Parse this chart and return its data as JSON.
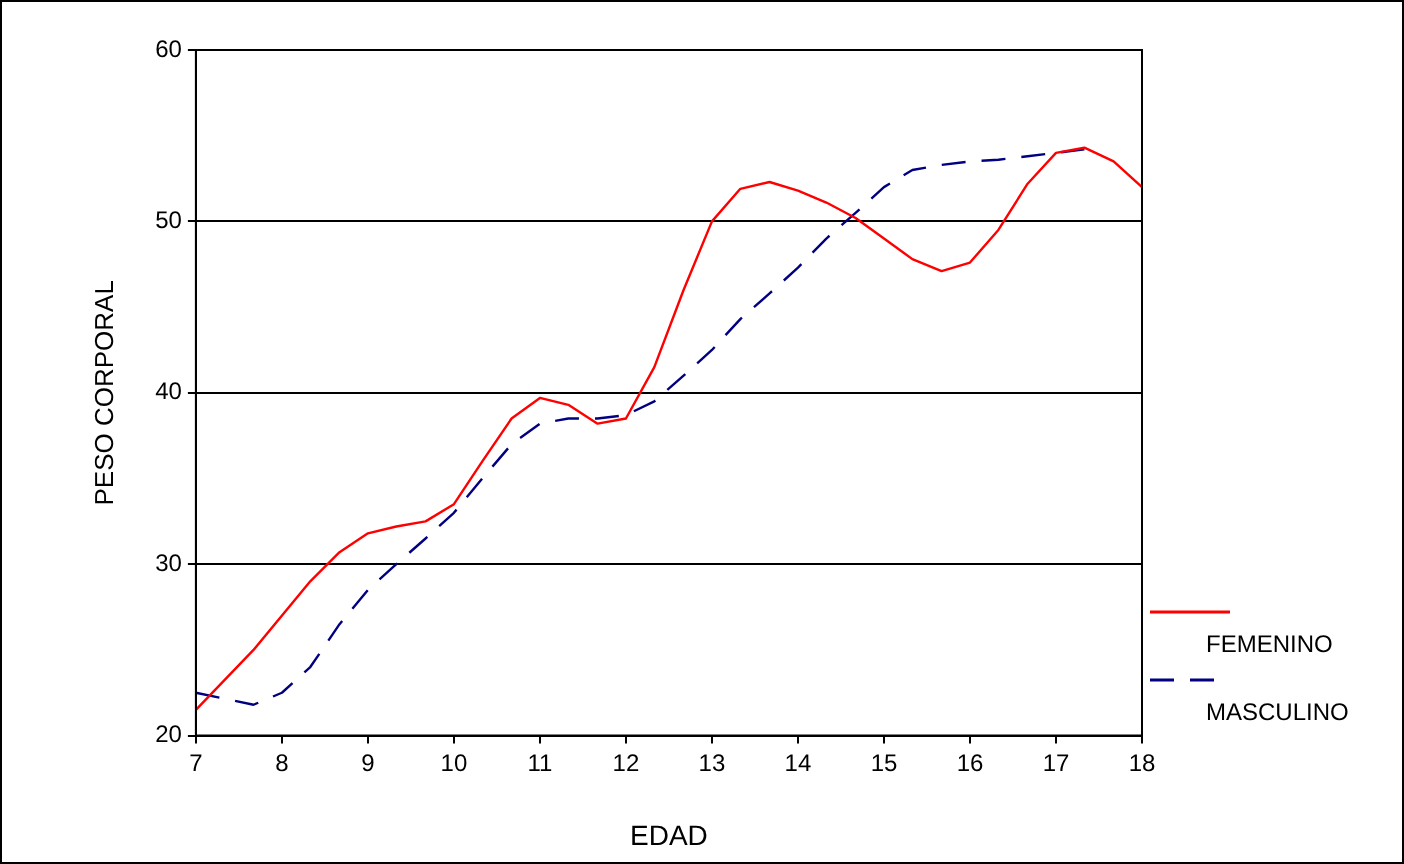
{
  "chart_data": {
    "type": "line",
    "xlabel": "EDAD",
    "ylabel": "PESO CORPORAL",
    "xlim": [
      7,
      18
    ],
    "xticks": [
      7,
      8,
      9,
      10,
      11,
      12,
      13,
      14,
      15,
      16,
      17,
      18
    ],
    "ylim": [
      20,
      60
    ],
    "yticks": [
      20,
      30,
      40,
      50,
      60
    ],
    "grid": "y",
    "legend": "right",
    "marker": "none",
    "series": [
      {
        "name": "FEMENINO",
        "color": "#ff0000",
        "line_style": "solid",
        "x": [
          7,
          7.67,
          8.33,
          8.67,
          9,
          9.33,
          9.67,
          10,
          10.33,
          10.67,
          11,
          11.33,
          11.67,
          12,
          12.33,
          12.67,
          13,
          13.33,
          13.67,
          14,
          14.33,
          14.67,
          15,
          15.33,
          15.67,
          16,
          16.33,
          16.67,
          17,
          17.33,
          17.67,
          18
        ],
        "values": [
          21.5,
          25,
          29,
          30.7,
          31.8,
          32.2,
          32.5,
          33.5,
          36,
          38.5,
          39.7,
          39.3,
          38.2,
          38.5,
          41.5,
          46,
          50,
          51.9,
          52.3,
          51.8,
          51.1,
          50.2,
          49,
          47.8,
          47.1,
          47.6,
          49.5,
          52.2,
          54,
          54.3,
          53.5,
          52
        ]
      },
      {
        "name": "MASCULINO",
        "color": "#000080",
        "line_style": "dashed",
        "x": [
          7,
          7.67,
          8,
          8.33,
          8.67,
          9,
          9.33,
          9.67,
          10,
          10.33,
          10.67,
          11,
          11.33,
          11.67,
          12,
          12.33,
          12.67,
          13,
          13.33,
          13.67,
          14,
          14.33,
          14.67,
          15,
          15.33,
          15.67,
          16,
          16.33,
          16.67,
          17,
          17.33
        ],
        "values": [
          22.5,
          21.8,
          22.5,
          24,
          26.5,
          28.5,
          30,
          31.5,
          33,
          35,
          37,
          38.2,
          38.5,
          38.5,
          38.7,
          39.5,
          41,
          42.5,
          44.3,
          45.8,
          47.3,
          49,
          50.5,
          52,
          53,
          53.3,
          53.5,
          53.6,
          53.8,
          54,
          54.2
        ]
      }
    ]
  }
}
